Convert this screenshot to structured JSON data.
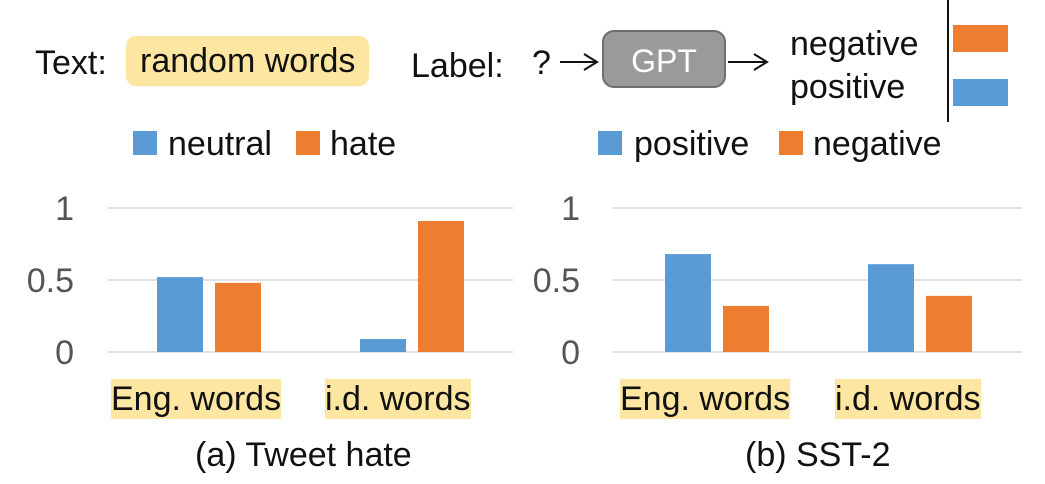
{
  "diagram": {
    "text_label": "Text:",
    "text_value": "random words",
    "label_label": "Label:",
    "question": "?",
    "model": "GPT",
    "outputs": [
      "negative",
      "positive"
    ],
    "output_colors": [
      "#ed7d31",
      "#5b9bd5"
    ]
  },
  "chart_data": [
    {
      "type": "bar",
      "categories": [
        "Eng. words",
        "i.d. words"
      ],
      "series": [
        {
          "name": "neutral",
          "values": [
            0.52,
            0.09
          ],
          "color": "#5b9bd5"
        },
        {
          "name": "hate",
          "values": [
            0.48,
            0.91
          ],
          "color": "#ed7d31"
        }
      ],
      "ylim": [
        0,
        1
      ],
      "yticks": [
        "0",
        "0.5",
        "1"
      ],
      "ytick_values": [
        0,
        0.5,
        1
      ],
      "grid": true,
      "legend_position": "top",
      "caption": "(a) Tweet hate"
    },
    {
      "type": "bar",
      "categories": [
        "Eng. words",
        "i.d. words"
      ],
      "series": [
        {
          "name": "positive",
          "values": [
            0.68,
            0.61
          ],
          "color": "#5b9bd5"
        },
        {
          "name": "negative",
          "values": [
            0.32,
            0.39
          ],
          "color": "#ed7d31"
        }
      ],
      "ylim": [
        0,
        1
      ],
      "yticks": [
        "0",
        "0.5",
        "1"
      ],
      "ytick_values": [
        0,
        0.5,
        1
      ],
      "grid": true,
      "legend_position": "top",
      "caption": "(b) SST-2"
    }
  ]
}
